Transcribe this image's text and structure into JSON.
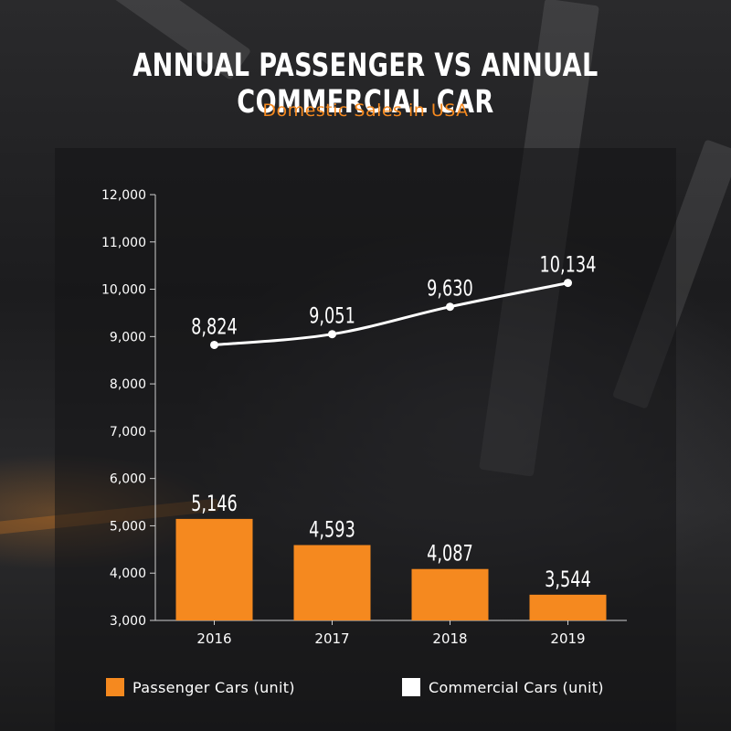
{
  "header": {
    "title": "ANNUAL PASSENGER VS ANNUAL COMMERCIAL CAR",
    "subtitle": "Domestic Sales in USA"
  },
  "colors": {
    "passenger": "#f5891f",
    "commercial": "#ffffff",
    "axis": "#cfcfcf"
  },
  "chart_data": {
    "type": "bar",
    "title": "ANNUAL PASSENGER VS ANNUAL COMMERCIAL CAR",
    "subtitle": "Domestic Sales in USA",
    "categories": [
      "2016",
      "2017",
      "2018",
      "2019"
    ],
    "ylim": [
      3000,
      12000
    ],
    "yticks": [
      3000,
      4000,
      5000,
      6000,
      7000,
      8000,
      9000,
      10000,
      11000,
      12000
    ],
    "ytick_labels": [
      "3,000",
      "4,000",
      "5,000",
      "6,000",
      "7,000",
      "8,000",
      "9,000",
      "10,000",
      "11,000",
      "12,000"
    ],
    "grid": false,
    "legend_position": "bottom",
    "series": [
      {
        "name": "Passenger Cars (unit)",
        "type": "bar",
        "values": [
          5146,
          4593,
          4087,
          3544
        ],
        "labels": [
          "5,146",
          "4,593",
          "4,087",
          "3,544"
        ]
      },
      {
        "name": "Commercial Cars (unit)",
        "type": "line",
        "values": [
          8824,
          9051,
          9630,
          10134
        ],
        "labels": [
          "8,824",
          "9,051",
          "9,630",
          "10,134"
        ]
      }
    ]
  }
}
